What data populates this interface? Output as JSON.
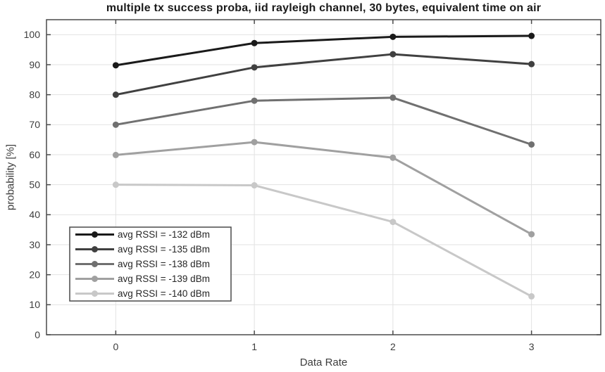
{
  "chart_data": {
    "type": "line",
    "title": "multiple tx success proba, iid rayleigh channel, 30 bytes, equivalent time on air",
    "xlabel": "Data Rate",
    "ylabel": "probability [%]",
    "x": [
      0,
      1,
      2,
      3
    ],
    "xticks": [
      "0",
      "1",
      "2",
      "3"
    ],
    "yticks": [
      0,
      10,
      20,
      30,
      40,
      50,
      60,
      70,
      80,
      90,
      100
    ],
    "xlim": [
      -0.5,
      3.5
    ],
    "ylim": [
      0,
      105
    ],
    "grid": true,
    "legend_position": "lower-left",
    "series": [
      {
        "name": "avg RSSI = -132 dBm",
        "color": "#1a1a1a",
        "values": [
          89.8,
          97.2,
          99.3,
          99.6
        ]
      },
      {
        "name": "avg RSSI = -135 dBm",
        "color": "#404040",
        "values": [
          80.0,
          89.1,
          93.5,
          90.2
        ]
      },
      {
        "name": "avg RSSI = -138 dBm",
        "color": "#707070",
        "values": [
          70.0,
          78.0,
          79.0,
          63.4
        ]
      },
      {
        "name": "avg RSSI = -139 dBm",
        "color": "#a0a0a0",
        "values": [
          59.9,
          64.2,
          59.0,
          33.5
        ]
      },
      {
        "name": "avg RSSI = -140 dBm",
        "color": "#c8c8c8",
        "values": [
          50.0,
          49.8,
          37.6,
          12.8
        ]
      }
    ],
    "style": {
      "grid_color": "#e2e2e2",
      "axis_color": "#4a4a4a",
      "tick_label_color": "#3d3d3d",
      "legend_text_color": "#262626",
      "background": "#ffffff"
    }
  }
}
